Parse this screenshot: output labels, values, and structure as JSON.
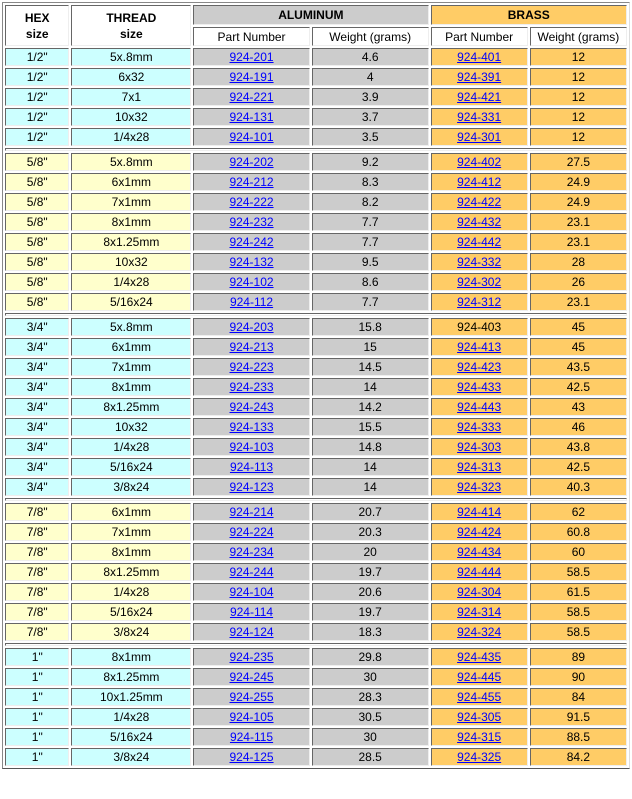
{
  "header": {
    "hex": [
      "HEX",
      "size"
    ],
    "thread": [
      "THREAD",
      "size"
    ],
    "aluminum": "ALUMINUM",
    "brass": "BRASS",
    "part_number": "Part Number",
    "weight": "Weight (grams)"
  },
  "colors": {
    "cyan": "#ccffff",
    "yellow": "#ffffcc",
    "aluminum": "#cccccc",
    "brass": "#ffcc66",
    "link": "#0000ff"
  },
  "groups": [
    {
      "hex": "1/2\"",
      "color": "#ccffff",
      "rows": [
        {
          "thread": "5x.8mm",
          "al_part": "924-201",
          "al_weight": "4.6",
          "br_part": "924-401",
          "br_weight": "12"
        },
        {
          "thread": "6x32",
          "al_part": "924-191",
          "al_weight": "4",
          "br_part": "924-391",
          "br_weight": "12"
        },
        {
          "thread": "7x1",
          "al_part": "924-221",
          "al_weight": "3.9",
          "br_part": "924-421",
          "br_weight": "12"
        },
        {
          "thread": "10x32",
          "al_part": "924-131",
          "al_weight": "3.7",
          "br_part": "924-331",
          "br_weight": "12"
        },
        {
          "thread": "1/4x28",
          "al_part": "924-101",
          "al_weight": "3.5",
          "br_part": "924-301",
          "br_weight": "12"
        }
      ]
    },
    {
      "hex": "5/8\"",
      "color": "#ffffcc",
      "rows": [
        {
          "thread": "5x.8mm",
          "al_part": "924-202",
          "al_weight": "9.2",
          "br_part": "924-402",
          "br_weight": "27.5"
        },
        {
          "thread": "6x1mm",
          "al_part": "924-212",
          "al_weight": "8.3",
          "br_part": "924-412",
          "br_weight": "24.9"
        },
        {
          "thread": "7x1mm",
          "al_part": "924-222",
          "al_weight": "8.2",
          "br_part": "924-422",
          "br_weight": "24.9"
        },
        {
          "thread": "8x1mm",
          "al_part": "924-232",
          "al_weight": "7.7",
          "br_part": "924-432",
          "br_weight": "23.1"
        },
        {
          "thread": "8x1.25mm",
          "al_part": "924-242",
          "al_weight": "7.7",
          "br_part": "924-442",
          "br_weight": "23.1"
        },
        {
          "thread": "10x32",
          "al_part": "924-132",
          "al_weight": "9.5",
          "br_part": "924-332",
          "br_weight": "28"
        },
        {
          "thread": "1/4x28",
          "al_part": "924-102",
          "al_weight": "8.6",
          "br_part": "924-302",
          "br_weight": "26"
        },
        {
          "thread": "5/16x24",
          "al_part": "924-112",
          "al_weight": "7.7",
          "br_part": "924-312",
          "br_weight": "23.1"
        }
      ]
    },
    {
      "hex": "3/4\"",
      "color": "#ccffff",
      "rows": [
        {
          "thread": "5x.8mm",
          "al_part": "924-203",
          "al_weight": "15.8",
          "br_part": "924-403",
          "br_weight": "45",
          "br_nolink": true
        },
        {
          "thread": "6x1mm",
          "al_part": "924-213",
          "al_weight": "15",
          "br_part": "924-413",
          "br_weight": "45"
        },
        {
          "thread": "7x1mm",
          "al_part": "924-223",
          "al_weight": "14.5",
          "br_part": "924-423",
          "br_weight": "43.5"
        },
        {
          "thread": "8x1mm",
          "al_part": "924-233",
          "al_weight": "14",
          "br_part": "924-433",
          "br_weight": "42.5"
        },
        {
          "thread": "8x1.25mm",
          "al_part": "924-243",
          "al_weight": "14.2",
          "br_part": "924-443",
          "br_weight": "43"
        },
        {
          "thread": "10x32",
          "al_part": "924-133",
          "al_weight": "15.5",
          "br_part": "924-333",
          "br_weight": "46"
        },
        {
          "thread": "1/4x28",
          "al_part": "924-103",
          "al_weight": "14.8",
          "br_part": "924-303",
          "br_weight": "43.8"
        },
        {
          "thread": "5/16x24",
          "al_part": "924-113",
          "al_weight": "14",
          "br_part": "924-313",
          "br_weight": "42.5"
        },
        {
          "thread": "3/8x24",
          "al_part": "924-123",
          "al_weight": "14",
          "br_part": "924-323",
          "br_weight": "40.3"
        }
      ]
    },
    {
      "hex": "7/8\"",
      "color": "#ffffcc",
      "rows": [
        {
          "thread": "6x1mm",
          "al_part": "924-214",
          "al_weight": "20.7",
          "br_part": "924-414",
          "br_weight": "62"
        },
        {
          "thread": "7x1mm",
          "al_part": "924-224",
          "al_weight": "20.3",
          "br_part": "924-424",
          "br_weight": "60.8"
        },
        {
          "thread": "8x1mm",
          "al_part": "924-234",
          "al_weight": "20",
          "br_part": "924-434",
          "br_weight": "60"
        },
        {
          "thread": "8x1.25mm",
          "al_part": "924-244",
          "al_weight": "19.7",
          "br_part": "924-444",
          "br_weight": "58.5"
        },
        {
          "thread": "1/4x28",
          "al_part": "924-104",
          "al_weight": "20.6",
          "br_part": "924-304",
          "br_weight": "61.5"
        },
        {
          "thread": "5/16x24",
          "al_part": "924-114",
          "al_weight": "19.7",
          "br_part": "924-314",
          "br_weight": "58.5"
        },
        {
          "thread": "3/8x24",
          "al_part": "924-124",
          "al_weight": "18.3",
          "br_part": "924-324",
          "br_weight": "58.5"
        }
      ]
    },
    {
      "hex": "1\"",
      "color": "#ccffff",
      "rows": [
        {
          "thread": "8x1mm",
          "al_part": "924-235",
          "al_weight": "29.8",
          "br_part": "924-435",
          "br_weight": "89"
        },
        {
          "thread": "8x1.25mm",
          "al_part": "924-245",
          "al_weight": "30",
          "br_part": "924-445",
          "br_weight": "90"
        },
        {
          "thread": "10x1.25mm",
          "al_part": "924-255",
          "al_weight": "28.3",
          "br_part": "924-455",
          "br_weight": "84"
        },
        {
          "thread": "1/4x28",
          "al_part": "924-105",
          "al_weight": "30.5",
          "br_part": "924-305",
          "br_weight": "91.5"
        },
        {
          "thread": "5/16x24",
          "al_part": "924-115",
          "al_weight": "30",
          "br_part": "924-315",
          "br_weight": "88.5"
        },
        {
          "thread": "3/8x24",
          "al_part": "924-125",
          "al_weight": "28.5",
          "br_part": "924-325",
          "br_weight": "84.2"
        }
      ]
    }
  ]
}
